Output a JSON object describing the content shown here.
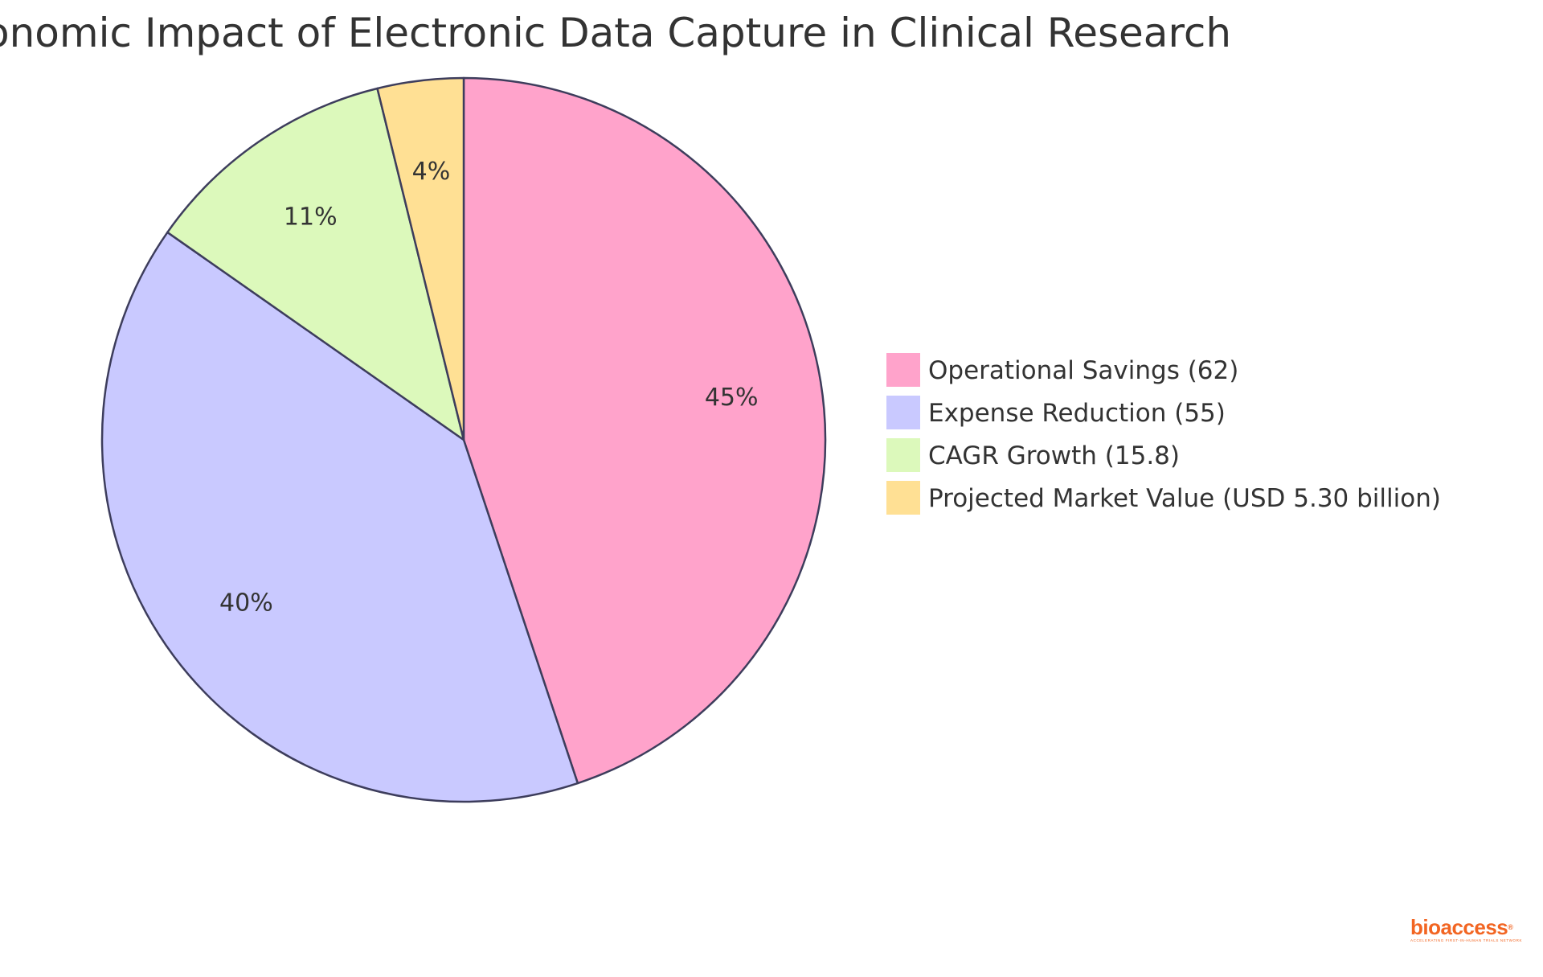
{
  "chart_data": {
    "type": "pie",
    "title": "Economic Impact of Electronic Data Capture in Clinical Research",
    "legend_position": "right",
    "slices": [
      {
        "label": "Operational Savings (62)",
        "value": 62,
        "percent_label": "45%",
        "color": "#ffa3cb"
      },
      {
        "label": "Expense Reduction (55)",
        "value": 55,
        "percent_label": "40%",
        "color": "#c9c9ff"
      },
      {
        "label": "CAGR Growth (15.8)",
        "value": 15.8,
        "percent_label": "11%",
        "color": "#dcf9bb"
      },
      {
        "label": "Projected Market Value (USD 5.30 billion)",
        "value": 5.3,
        "percent_label": "4%",
        "color": "#ffe094"
      }
    ],
    "stroke_color": "#3d3d5c"
  },
  "branding": {
    "logo_text": "bioaccess",
    "logo_registered": "®",
    "logo_tagline": "ACCELERATING FIRST-IN-HUMAN TRIALS NETWORK",
    "logo_color": "#f26522"
  }
}
